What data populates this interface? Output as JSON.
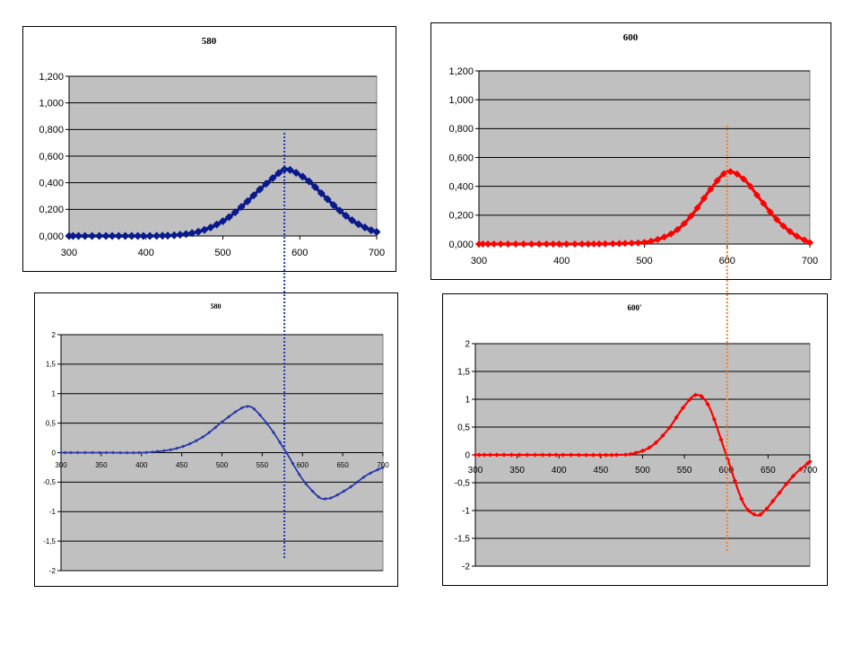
{
  "colors": {
    "plot_bg": "#c0c0c0",
    "frame": "#000000",
    "gridline": "#000000",
    "series_blue": "#0a1a8c",
    "series_blue_light": "#2a3aa8",
    "series_red": "#ff0000",
    "guide_blue": "#2038b0",
    "guide_orange": "#ff7f20"
  },
  "chart_data": [
    {
      "type": "line",
      "title": "580",
      "x": [
        300,
        350,
        400,
        430,
        450,
        470,
        490,
        510,
        530,
        550,
        570,
        580,
        590,
        610,
        630,
        650,
        670,
        690,
        700
      ],
      "series": [
        {
          "values": [
            0,
            0,
            0,
            0.003,
            0.013,
            0.035,
            0.08,
            0.15,
            0.25,
            0.36,
            0.46,
            0.5,
            0.49,
            0.42,
            0.31,
            0.2,
            0.11,
            0.05,
            0.03
          ]
        }
      ],
      "xlim": [
        300,
        700
      ],
      "ylim": [
        0,
        1.2
      ],
      "xticks": [
        "300",
        "400",
        "500",
        "600",
        "700"
      ],
      "yticks": [
        "0,000",
        "0,200",
        "0,400",
        "0,600",
        "0,800",
        "1,000",
        "1,200"
      ],
      "grid": true,
      "style": {
        "color": "series_blue"
      }
    },
    {
      "type": "line",
      "title": "600",
      "x": [
        300,
        400,
        450,
        480,
        500,
        520,
        540,
        560,
        580,
        600,
        620,
        640,
        660,
        680,
        700
      ],
      "series": [
        {
          "values": [
            0,
            0,
            0.001,
            0.005,
            0.012,
            0.04,
            0.1,
            0.22,
            0.38,
            0.5,
            0.45,
            0.31,
            0.17,
            0.07,
            0.01
          ]
        }
      ],
      "xlim": [
        300,
        700
      ],
      "ylim": [
        0,
        1.2
      ],
      "xticks": [
        "300",
        "400",
        "500",
        "600",
        "700"
      ],
      "yticks": [
        "0,000",
        "0,200",
        "0,400",
        "0,600",
        "0,800",
        "1,000",
        "1,200"
      ],
      "grid": true,
      "style": {
        "color": "series_red"
      }
    },
    {
      "type": "line",
      "title": "580",
      "x": [
        300,
        350,
        400,
        420,
        440,
        460,
        480,
        500,
        520,
        530,
        540,
        560,
        580,
        600,
        620,
        630,
        640,
        660,
        680,
        700
      ],
      "series": [
        {
          "values": [
            0,
            0,
            0,
            0.02,
            0.06,
            0.15,
            0.3,
            0.52,
            0.72,
            0.78,
            0.74,
            0.42,
            0,
            -0.45,
            -0.75,
            -0.78,
            -0.74,
            -0.58,
            -0.38,
            -0.25
          ]
        }
      ],
      "xlim": [
        300,
        700
      ],
      "ylim": [
        -2,
        2
      ],
      "xticks": [
        "300",
        "350",
        "400",
        "450",
        "500",
        "550",
        "600",
        "650",
        "700"
      ],
      "yticks": [
        "-2",
        "-1,5",
        "-1",
        "-0,5",
        "0",
        "0,5",
        "1",
        "1,5",
        "2"
      ],
      "grid": true,
      "style": {
        "color": "series_blue_light"
      }
    },
    {
      "type": "line",
      "title": "600'",
      "x": [
        300,
        400,
        470,
        490,
        510,
        530,
        550,
        565,
        580,
        600,
        620,
        635,
        645,
        660,
        680,
        700
      ],
      "series": [
        {
          "values": [
            0,
            0,
            0,
            0.03,
            0.15,
            0.45,
            0.88,
            1.08,
            0.85,
            0,
            -0.85,
            -1.08,
            -1.02,
            -0.75,
            -0.38,
            -0.12
          ]
        }
      ],
      "xlim": [
        300,
        700
      ],
      "ylim": [
        -2,
        2
      ],
      "xticks": [
        "300",
        "350",
        "400",
        "450",
        "500",
        "550",
        "600",
        "650",
        "700"
      ],
      "yticks": [
        "-2",
        "-1,5",
        "-1",
        "-0,5",
        "0",
        "0,5",
        "1",
        "1,5",
        "2"
      ],
      "grid": true,
      "style": {
        "color": "series_red"
      }
    }
  ],
  "guides": [
    {
      "x": 580,
      "color": "guide_blue"
    },
    {
      "x": 600,
      "color": "guide_orange"
    }
  ]
}
